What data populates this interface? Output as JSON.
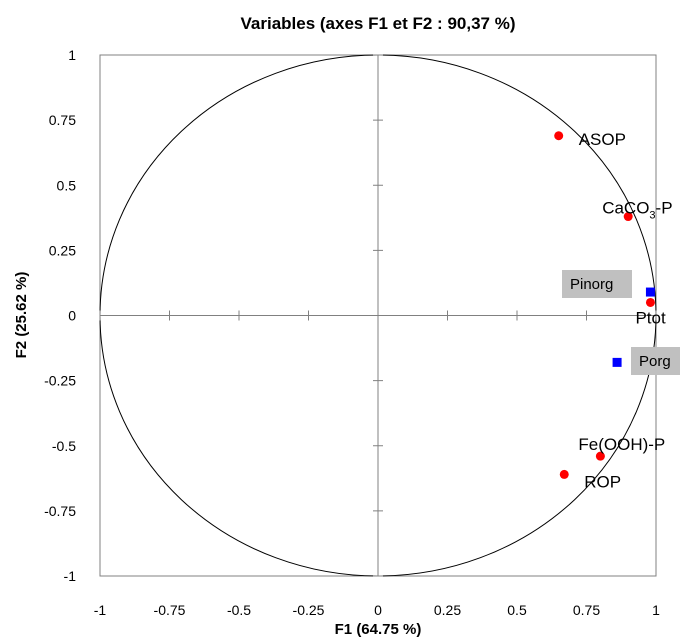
{
  "chart_data": {
    "type": "scatter",
    "title": "Variables (axes F1 et F2 : 90,37 %)",
    "xlabel": "F1 (64.75 %)",
    "ylabel": "F2 (25.62 %)",
    "xlim": [
      -1,
      1
    ],
    "ylim": [
      -1,
      1
    ],
    "x_ticks": [
      "-1",
      "-0.75",
      "-0.5",
      "-0.25",
      "0",
      "0.25",
      "0.5",
      "0.75",
      "1"
    ],
    "y_ticks": [
      "-1",
      "-0.75",
      "-0.5",
      "-0.25",
      "0",
      "0.25",
      "0.5",
      "0.75",
      "1"
    ],
    "correlation_circle": true,
    "grid": false,
    "series": [
      {
        "marker": "circle",
        "color": "#ff0000",
        "points": [
          {
            "label": "ASOP",
            "label_parts": [
              "ASOP"
            ],
            "x": 0.65,
            "y": 0.69
          },
          {
            "label": "CaCO3-P",
            "label_parts": [
              "CaCO",
              "3",
              "-P"
            ],
            "x": 0.9,
            "y": 0.38
          },
          {
            "label": "Ptot",
            "label_parts": [
              "Ptot"
            ],
            "x": 0.98,
            "y": 0.05
          },
          {
            "label": "Fe(OOH)-P",
            "label_parts": [
              "Fe(OOH)-P"
            ],
            "x": 0.8,
            "y": -0.54
          },
          {
            "label": "ROP",
            "label_parts": [
              "ROP"
            ],
            "x": 0.67,
            "y": -0.61
          }
        ]
      },
      {
        "marker": "square",
        "color": "#0000ff",
        "boxed_labels": true,
        "points": [
          {
            "label": "Pinorg",
            "x": 0.98,
            "y": 0.09
          },
          {
            "label": "Porg",
            "x": 0.86,
            "y": -0.18
          }
        ]
      }
    ]
  }
}
